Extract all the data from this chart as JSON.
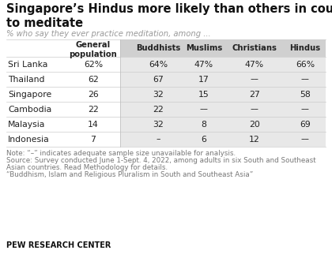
{
  "title": "Singapore’s Hindus more likely than others in country\nto meditate",
  "subtitle": "% who say they ever practice meditation, among ...",
  "countries": [
    "Sri Lanka",
    "Thailand",
    "Singapore",
    "Cambodia",
    "Malaysia",
    "Indonesia"
  ],
  "col_headers": [
    "General\npopulation",
    "Buddhists",
    "Muslims",
    "Christians",
    "Hindus"
  ],
  "table_data": [
    [
      "62%",
      "64%",
      "47%",
      "47%",
      "66%"
    ],
    [
      "62",
      "67",
      "17",
      "––",
      "––"
    ],
    [
      "26",
      "32",
      "15",
      "27",
      "58"
    ],
    [
      "22",
      "22",
      "––",
      "––",
      "––"
    ],
    [
      "14",
      "32",
      "8",
      "20",
      "69"
    ],
    [
      "7",
      "–",
      "6",
      "12",
      "––"
    ]
  ],
  "note_line1": "Note: “–” indicates adequate sample size unavailable for analysis.",
  "note_line2": "Source: Survey conducted June 1-Sept. 4, 2022, among adults in six South and Southeast",
  "note_line3": "Asian countries. Read Methodology for details.",
  "note_line4": "“Buddhism, Islam and Religious Pluralism in South and Southeast Asia”",
  "footer": "PEW RESEARCH CENTER",
  "shade_color": "#e8e8e8",
  "header_shade_color": "#d0d0d0",
  "white_bg": "#ffffff",
  "title_color": "#111111",
  "subtitle_color": "#999999",
  "body_color": "#222222",
  "note_color": "#777777",
  "footer_color": "#111111",
  "line_color": "#cccccc"
}
